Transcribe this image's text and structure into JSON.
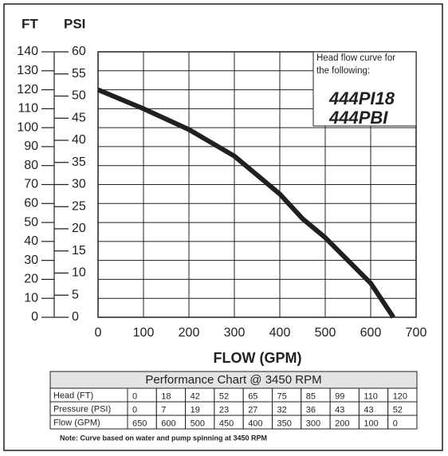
{
  "chart_data": {
    "type": "line",
    "y_label": "FT",
    "y2_label": "PSI",
    "x_label": "FLOW (GPM)",
    "xlim": [
      0,
      700
    ],
    "xticks": [
      0,
      100,
      200,
      300,
      400,
      500,
      600,
      700
    ],
    "ylim": [
      0,
      140
    ],
    "yticks": [
      0,
      10,
      20,
      30,
      40,
      50,
      60,
      70,
      80,
      90,
      100,
      110,
      120,
      130,
      140
    ],
    "y2lim": [
      0,
      60
    ],
    "y2ticks": [
      0,
      5,
      10,
      15,
      20,
      25,
      30,
      35,
      40,
      45,
      50,
      55,
      60
    ],
    "grid": true,
    "color": "#231f20",
    "annotation": {
      "text": "Head flow curve for the following:",
      "models": [
        "444PI18",
        "444PBI"
      ]
    },
    "table": {
      "title": "Performance Chart @ 3450 RPM",
      "rows": [
        {
          "label": "Head (FT)",
          "values": [
            0,
            18,
            42,
            52,
            65,
            75,
            85,
            99,
            110,
            120
          ]
        },
        {
          "label": "Pressure (PSI)",
          "values": [
            0,
            7,
            19,
            23,
            27,
            32,
            36,
            43,
            43,
            52
          ]
        },
        {
          "label": "Flow (GPM)",
          "values": [
            650,
            600,
            500,
            450,
            400,
            350,
            300,
            200,
            100,
            0
          ]
        }
      ],
      "note": "Note: Curve based on water and pump spinning at 3450 RPM"
    }
  }
}
